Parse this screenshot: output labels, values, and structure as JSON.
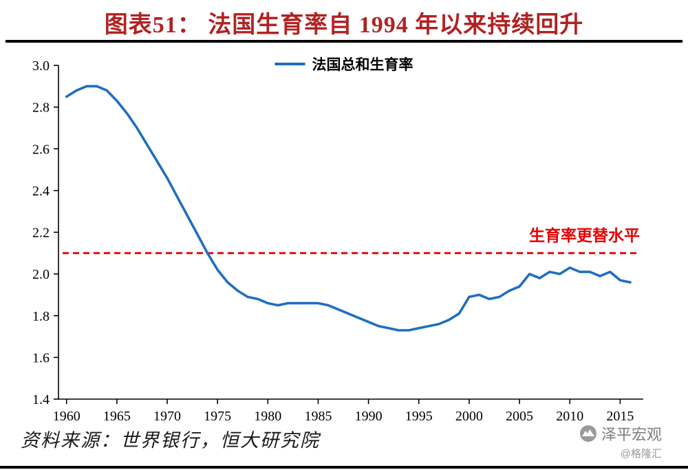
{
  "title": "图表51： 法国生育率自 1994 年以来持续回升",
  "source": "资料来源：世界银行，恒大研究院",
  "watermark": {
    "brand": "泽平宏观",
    "handle": "@格隆汇"
  },
  "colors": {
    "title": "#b22222",
    "line": "#1e6fbf",
    "reference": "#e60000",
    "axis": "#000000",
    "background": "#ffffff"
  },
  "chart_data": {
    "type": "line",
    "title": "图表51： 法国生育率自 1994 年以来持续回升",
    "xlabel": "",
    "ylabel": "",
    "xlim": [
      1959.2,
      2017.3
    ],
    "ylim": [
      1.4,
      3.0
    ],
    "x_ticks": [
      1960,
      1965,
      1970,
      1975,
      1980,
      1985,
      1990,
      1995,
      2000,
      2005,
      2010,
      2015
    ],
    "y_ticks": [
      1.4,
      1.6,
      1.8,
      2.0,
      2.2,
      2.4,
      2.6,
      2.8,
      3.0
    ],
    "grid": false,
    "legend_position": "top-center",
    "series": [
      {
        "name": "法国总和生育率",
        "color": "#1e6fbf",
        "x": [
          1960,
          1961,
          1962,
          1963,
          1964,
          1965,
          1966,
          1967,
          1968,
          1969,
          1970,
          1971,
          1972,
          1973,
          1974,
          1975,
          1976,
          1977,
          1978,
          1979,
          1980,
          1981,
          1982,
          1983,
          1984,
          1985,
          1986,
          1987,
          1988,
          1989,
          1990,
          1991,
          1992,
          1993,
          1994,
          1995,
          1996,
          1997,
          1998,
          1999,
          2000,
          2001,
          2002,
          2003,
          2004,
          2005,
          2006,
          2007,
          2008,
          2009,
          2010,
          2011,
          2012,
          2013,
          2014,
          2015,
          2016
        ],
        "values": [
          2.85,
          2.88,
          2.9,
          2.9,
          2.88,
          2.83,
          2.77,
          2.7,
          2.62,
          2.54,
          2.46,
          2.37,
          2.28,
          2.19,
          2.1,
          2.02,
          1.96,
          1.92,
          1.89,
          1.88,
          1.86,
          1.85,
          1.86,
          1.86,
          1.86,
          1.86,
          1.85,
          1.83,
          1.81,
          1.79,
          1.77,
          1.75,
          1.74,
          1.73,
          1.73,
          1.74,
          1.75,
          1.76,
          1.78,
          1.81,
          1.89,
          1.9,
          1.88,
          1.89,
          1.92,
          1.94,
          2.0,
          1.98,
          2.01,
          2.0,
          2.03,
          2.01,
          2.01,
          1.99,
          2.01,
          1.97,
          1.96
        ]
      }
    ],
    "reference_line": {
      "value": 2.1,
      "label": "生育率更替水平",
      "color": "#e60000",
      "style": "dashed"
    }
  }
}
